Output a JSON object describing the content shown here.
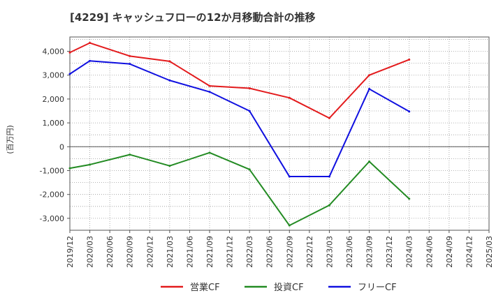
{
  "chart_data": {
    "type": "line",
    "title": "[4229]  キャッシュフローの12か月移動合計の推移",
    "ylabel": "(百万円)",
    "xlabel": "",
    "ylim": [
      -3500,
      4600
    ],
    "yticks": [
      4000,
      3000,
      2000,
      1000,
      0,
      -1000,
      -2000,
      -3000
    ],
    "ytick_labels": [
      "4,000",
      "3,000",
      "2,000",
      "1,000",
      "0",
      "-1,000",
      "-2,000",
      "-3,000"
    ],
    "x_ticks": [
      "2019/12",
      "2020/03",
      "2020/06",
      "2020/09",
      "2020/12",
      "2021/03",
      "2021/06",
      "2021/09",
      "2021/12",
      "2022/03",
      "2022/06",
      "2022/09",
      "2022/12",
      "2023/03",
      "2023/06",
      "2023/09",
      "2023/12",
      "2024/03",
      "2024/06",
      "2024/09",
      "2024/12",
      "2025/03"
    ],
    "x": [
      "2019/12",
      "2020/03",
      "2020/09",
      "2021/03",
      "2021/09",
      "2022/03",
      "2022/09",
      "2023/03",
      "2023/09",
      "2024/03"
    ],
    "series": [
      {
        "name": "営業CF",
        "color": "#e31a1c",
        "values": [
          3950,
          4350,
          3800,
          3580,
          2550,
          2450,
          2050,
          1200,
          3000,
          3650
        ]
      },
      {
        "name": "投資CF",
        "color": "#238b23",
        "values": [
          -900,
          -750,
          -330,
          -800,
          -250,
          -950,
          -3300,
          -2450,
          -620,
          -2180
        ]
      },
      {
        "name": "フリーCF",
        "color": "#1010e0",
        "values": [
          3050,
          3600,
          3470,
          2780,
          2300,
          1500,
          -1250,
          -1250,
          2420,
          1480
        ]
      }
    ],
    "grid": true,
    "legend_position": "bottom"
  }
}
